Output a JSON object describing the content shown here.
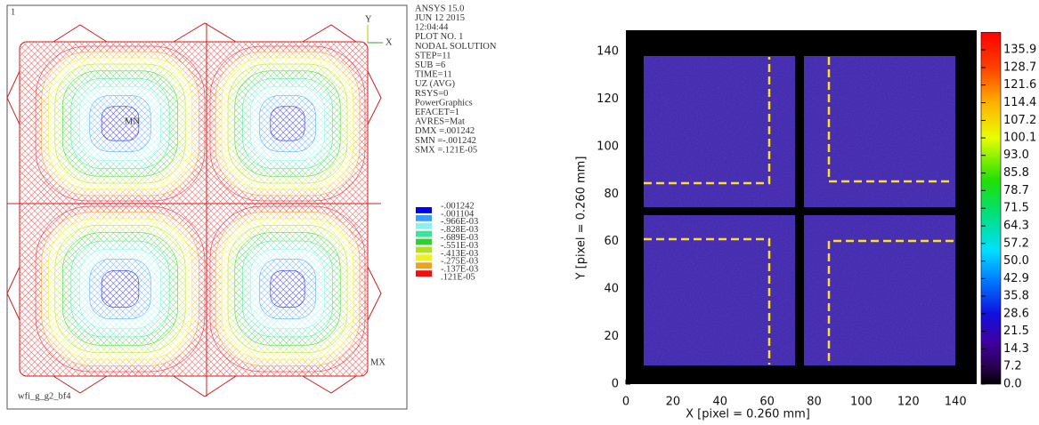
{
  "left_panel": {
    "frame_number": "1",
    "axis_x": "X",
    "axis_y": "Y",
    "info_lines": [
      "ANSYS 15.0",
      "JUN 12 2015",
      "12:04:44",
      "PLOT NO.   1",
      "NODAL SOLUTION",
      "STEP=11",
      "SUB =6",
      "TIME=11",
      "UZ        (AVG)",
      "RSYS=0",
      "PowerGraphics",
      "EFACET=1",
      "AVRES=Mat",
      "DMX =.001242",
      "SMN =-.001242",
      "SMX =.121E-05"
    ],
    "legend": {
      "values": [
        "-.001242",
        "-.001104",
        "-.966E-03",
        "-.828E-03",
        "-.689E-03",
        "-.551E-03",
        "-.413E-03",
        "-.275E-03",
        "-.137E-03",
        ".121E-05"
      ],
      "colors": [
        "#0000f0",
        "#3c9cff",
        "#8cf0f0",
        "#40e0a0",
        "#30d030",
        "#b0e020",
        "#f0f020",
        "#f0a020",
        "#f01010"
      ]
    },
    "min_marker": "MN",
    "max_marker": "MX",
    "model_name": "wfi_g_g2_bf4"
  },
  "chart_data": {
    "type": "heatmap",
    "xlabel": "X [pixel =  0.260 mm]",
    "ylabel": "Y [pixel =  0.260 mm]",
    "xlim": [
      0,
      149
    ],
    "ylim": [
      0,
      149
    ],
    "xticks": [
      0,
      20,
      40,
      60,
      80,
      100,
      120,
      140
    ],
    "yticks": [
      0,
      20,
      40,
      60,
      80,
      100,
      120,
      140
    ],
    "clim": [
      0,
      143
    ],
    "cticks": [
      {
        "value": 0,
        "label": "0.0"
      },
      7.2,
      14.3,
      21.5,
      28.6,
      35.8,
      {
        "value": 42.9,
        "label": "42.9"
      },
      {
        "value": 50,
        "label": "50.0"
      },
      57.2,
      64.3,
      71.5,
      78.7,
      85.8,
      {
        "value": 93,
        "label": "93.0"
      },
      100.1,
      107.2,
      114.4,
      121.6,
      128.7,
      135.9
    ]
  }
}
